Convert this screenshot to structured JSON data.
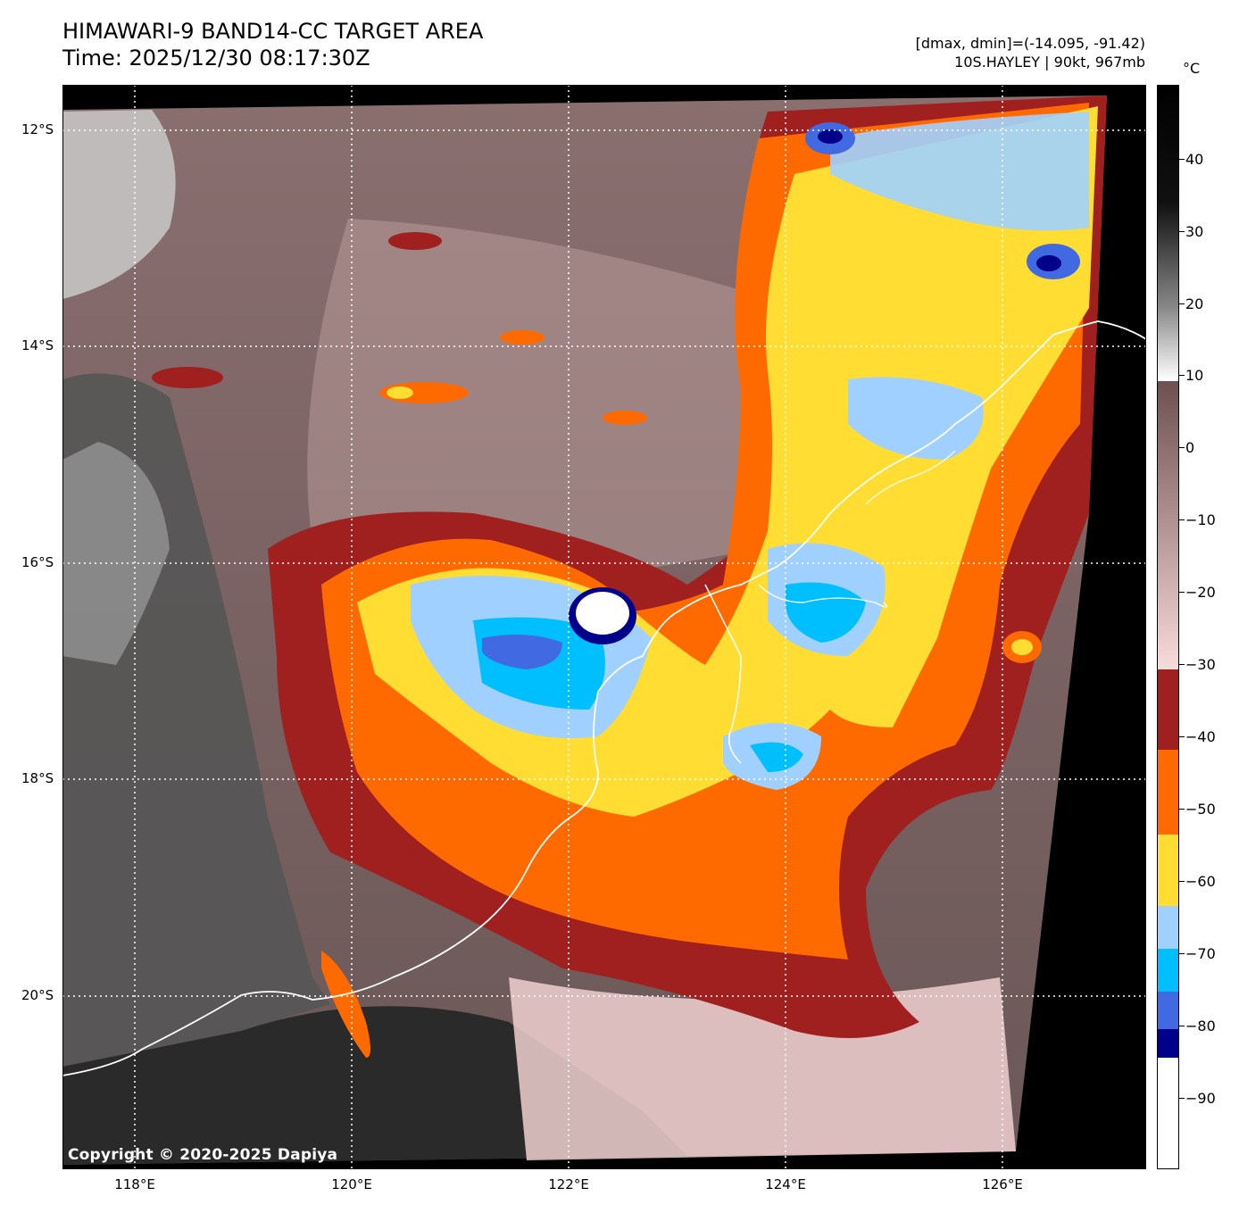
{
  "header": {
    "title": "HIMAWARI-9 BAND14-CC TARGET AREA",
    "time": "Time: 2025/12/30 08:17:30Z",
    "dminmax": "[dmax, dmin]=(-14.095, -91.42)",
    "storm": "10S.HAYLEY | 90kt, 967mb"
  },
  "map": {
    "lat_labels": [
      "12°S",
      "14°S",
      "16°S",
      "18°S",
      "20°S"
    ],
    "lon_labels": [
      "118°E",
      "120°E",
      "122°E",
      "124°E",
      "126°E"
    ],
    "copyright": "Copyright © 2020-2025 Dapiya",
    "storm_center": {
      "lat": -16.5,
      "lon": 122.3
    }
  },
  "colorbar": {
    "unit": "°C",
    "labels": [
      "40",
      "30",
      "20",
      "10",
      "0",
      "−10",
      "−20",
      "−30",
      "−40",
      "−50",
      "−60",
      "−70",
      "−80",
      "−90"
    ],
    "colors": {
      "warm_top": "#000000",
      "gray_mid": "#888888",
      "white_10": "#ffffff",
      "brown_0": "#6e5050",
      "pink_minus30": "#f8dcdc",
      "dark_red": "#a02020",
      "orange": "#ff6a00",
      "yellow": "#ffdd33",
      "light_blue": "#a0d0ff",
      "cyan": "#00bfff",
      "royal_blue": "#4169e1",
      "navy": "#00008b",
      "white_cold": "#ffffff"
    }
  }
}
